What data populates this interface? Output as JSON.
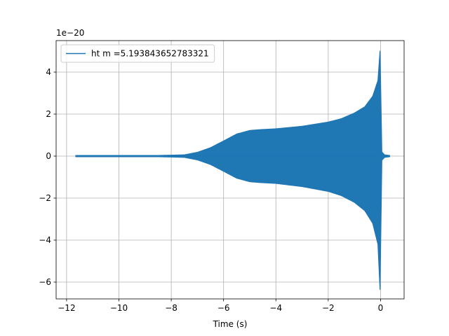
{
  "chart_data": {
    "type": "line",
    "title": "",
    "xlabel": "Time (s)",
    "ylabel": "",
    "y_offset_label": "1e−20",
    "xlim": [
      -12.4,
      0.9
    ],
    "ylim": [
      -6.8,
      5.5
    ],
    "x_ticks": [
      -12,
      -10,
      -8,
      -6,
      -4,
      -2,
      0
    ],
    "x_tick_labels": [
      "−12",
      "−10",
      "−8",
      "−6",
      "−4",
      "−2",
      "0"
    ],
    "y_ticks": [
      -6,
      -4,
      -2,
      0,
      2,
      4
    ],
    "y_tick_labels": [
      "−6",
      "−4",
      "−2",
      "0",
      "2",
      "4"
    ],
    "grid": true,
    "legend_position": "top-left",
    "series": [
      {
        "name": "ht m =5.193843652783321",
        "color": "#1f77b4",
        "style": "dense-oscillation",
        "envelope_upper": [
          [
            -11.65,
            0.03
          ],
          [
            -10.0,
            0.03
          ],
          [
            -8.5,
            0.03
          ],
          [
            -7.5,
            0.06
          ],
          [
            -7.0,
            0.18
          ],
          [
            -6.5,
            0.4
          ],
          [
            -6.0,
            0.72
          ],
          [
            -5.5,
            1.05
          ],
          [
            -5.0,
            1.22
          ],
          [
            -4.6,
            1.26
          ],
          [
            -4.0,
            1.3
          ],
          [
            -3.0,
            1.42
          ],
          [
            -2.0,
            1.62
          ],
          [
            -1.5,
            1.78
          ],
          [
            -1.0,
            2.05
          ],
          [
            -0.6,
            2.35
          ],
          [
            -0.3,
            2.85
          ],
          [
            -0.1,
            3.6
          ],
          [
            -0.02,
            5.0
          ],
          [
            0.05,
            0.2
          ],
          [
            0.15,
            0.06
          ],
          [
            0.35,
            0.03
          ]
        ],
        "envelope_lower": [
          [
            -11.65,
            -0.03
          ],
          [
            -10.0,
            -0.03
          ],
          [
            -8.5,
            -0.03
          ],
          [
            -7.5,
            -0.06
          ],
          [
            -7.0,
            -0.18
          ],
          [
            -6.5,
            -0.4
          ],
          [
            -6.0,
            -0.72
          ],
          [
            -5.5,
            -1.05
          ],
          [
            -5.0,
            -1.22
          ],
          [
            -4.6,
            -1.26
          ],
          [
            -4.0,
            -1.3
          ],
          [
            -3.0,
            -1.45
          ],
          [
            -2.0,
            -1.68
          ],
          [
            -1.5,
            -1.88
          ],
          [
            -1.0,
            -2.2
          ],
          [
            -0.6,
            -2.6
          ],
          [
            -0.3,
            -3.2
          ],
          [
            -0.1,
            -4.2
          ],
          [
            -0.02,
            -6.35
          ],
          [
            0.05,
            -0.2
          ],
          [
            0.15,
            -0.06
          ],
          [
            0.35,
            -0.03
          ]
        ]
      }
    ]
  }
}
